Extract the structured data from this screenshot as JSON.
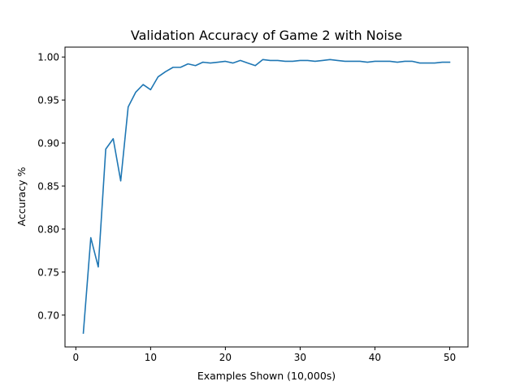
{
  "chart_data": {
    "type": "line",
    "title": "Validation Accuracy of Game 2 with Noise",
    "xlabel": "Examples Shown (10,000s)",
    "ylabel": "Accuracy %",
    "xlim": [
      -1.45,
      52.45
    ],
    "ylim": [
      0.663,
      1.0115
    ],
    "grid": false,
    "xticks": [
      0,
      10,
      20,
      30,
      40,
      50
    ],
    "xtick_labels": [
      "0",
      "10",
      "20",
      "30",
      "40",
      "50"
    ],
    "yticks": [
      0.7,
      0.75,
      0.8,
      0.85,
      0.9,
      0.95,
      1.0
    ],
    "ytick_labels": [
      "0.70",
      "0.75",
      "0.80",
      "0.85",
      "0.90",
      "0.95",
      "1.00"
    ],
    "series": [
      {
        "color": "#1f77b4",
        "x": [
          1,
          2,
          3,
          4,
          5,
          6,
          7,
          8,
          9,
          10,
          11,
          12,
          13,
          14,
          15,
          16,
          17,
          18,
          19,
          20,
          21,
          22,
          23,
          24,
          25,
          26,
          27,
          28,
          29,
          30,
          31,
          32,
          33,
          34,
          35,
          36,
          37,
          38,
          39,
          40,
          41,
          42,
          43,
          44,
          45,
          46,
          47,
          48,
          49,
          50
        ],
        "values": [
          0.679,
          0.79,
          0.756,
          0.893,
          0.905,
          0.856,
          0.942,
          0.959,
          0.968,
          0.962,
          0.977,
          0.983,
          0.988,
          0.988,
          0.992,
          0.99,
          0.994,
          0.993,
          0.994,
          0.995,
          0.993,
          0.996,
          0.993,
          0.99,
          0.997,
          0.996,
          0.996,
          0.995,
          0.995,
          0.996,
          0.996,
          0.995,
          0.996,
          0.997,
          0.996,
          0.995,
          0.995,
          0.995,
          0.994,
          0.995,
          0.995,
          0.995,
          0.994,
          0.995,
          0.995,
          0.993,
          0.993,
          0.993,
          0.994,
          0.994
        ]
      }
    ]
  }
}
